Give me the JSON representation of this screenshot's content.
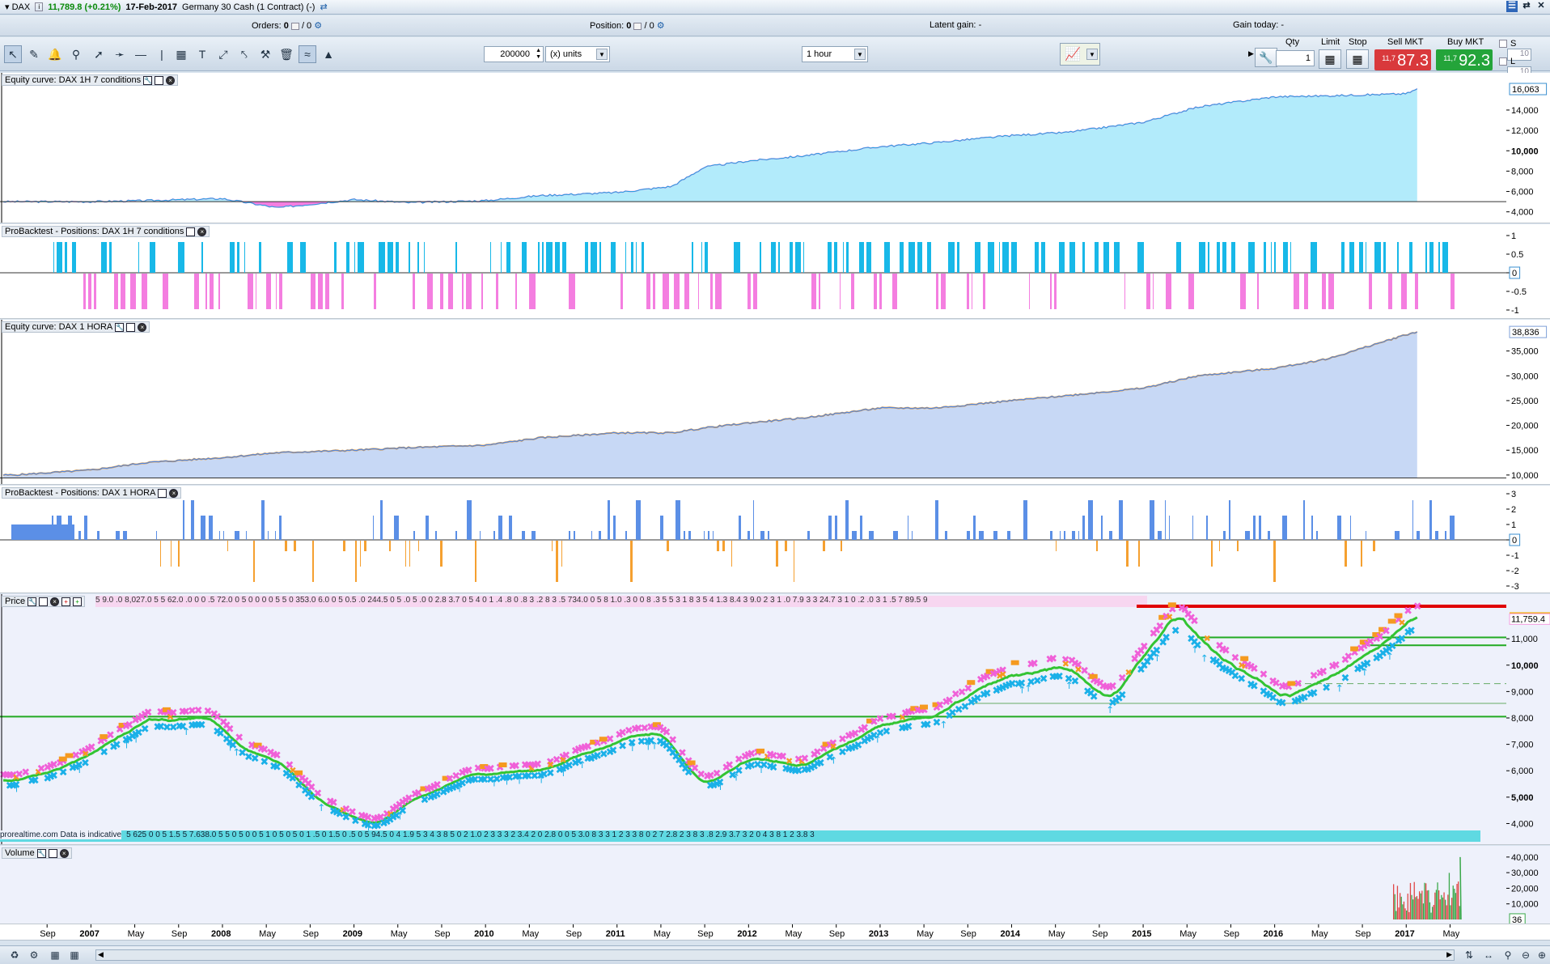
{
  "titlebar": {
    "instrument": "DAX",
    "price_change": "11,789.8 (+0.21%)",
    "date": "17-Feb-2017",
    "description": "Germany 30 Cash (1 Contract) (-)"
  },
  "infobar": {
    "orders_label": "Orders:",
    "orders_value": "0",
    "orders_sep": "/ 0",
    "position_label": "Position:",
    "position_value": "0",
    "position_sep": "/ 0",
    "latent_gain_label": "Latent gain:",
    "latent_gain_value": "-",
    "gain_today_label": "Gain today:",
    "gain_today_value": "-"
  },
  "toolbar": {
    "quantity_value": "200000",
    "units_select": "(x) units",
    "timeframe_select": "1 hour"
  },
  "order_panel": {
    "qty_label": "Qty",
    "qty_value": "1",
    "limit_label": "Limit",
    "stop_label": "Stop",
    "sell_label": "Sell MKT",
    "sell_prefix": "11,7",
    "sell_price": "87.3",
    "buy_label": "Buy MKT",
    "buy_prefix": "11,7",
    "buy_price": "92.3",
    "s_label": "S",
    "s_value": "10",
    "l_label": "L",
    "l_value": "10"
  },
  "colors": {
    "equity1_fill": "#b2ebfb",
    "equity1_line": "#1aa6e0",
    "drawdown": "#f47ee0",
    "long_bar": "#18b8e8",
    "short_bar": "#f47ee0",
    "equity2_fill": "#c7d8f5",
    "equity2_line": "#4f86e3",
    "equity2_bull": "#f5a030",
    "long_bar2": "#5b8fe6",
    "short_bar2": "#f5a030",
    "moving_avg": "#33c433",
    "support_line": "#22aa22",
    "resistance_line": "#e00000"
  },
  "panels": {
    "equity1_title": "Equity curve: DAX 1H 7 conditions",
    "positions1_title": "ProBacktest - Positions: DAX 1H 7 conditions",
    "equity2_title": "Equity curve: DAX 1 HORA",
    "positions2_title": "ProBacktest - Positions: DAX 1 HORA",
    "price_title": "Price",
    "volume_title": "Volume"
  },
  "axes": {
    "equity1": {
      "current": "16,063",
      "ticks": [
        "14,000",
        "12,000",
        "10,000",
        "8,000",
        "6,000",
        "4,000"
      ],
      "bold": [
        "10,000"
      ]
    },
    "positions1": {
      "ticks": [
        "1",
        "0.5",
        "0",
        "-0.5",
        "-1"
      ],
      "current": "0"
    },
    "equity2": {
      "current": "38,836",
      "ticks": [
        "35,000",
        "30,000",
        "25,000",
        "20,000",
        "15,000",
        "10,000"
      ]
    },
    "positions2": {
      "ticks": [
        "3",
        "2",
        "1",
        "0",
        "-1",
        "-2",
        "-3"
      ],
      "current": "0"
    },
    "price": {
      "current": "11,789.8",
      "second": "11,759.4",
      "ticks": [
        "11,000",
        "10,000",
        "9,000",
        "8,000",
        "7,000",
        "6,000",
        "5,000",
        "4,000"
      ],
      "bold": [
        "10,000",
        "5,000"
      ]
    },
    "volume": {
      "ticks": [
        "40,000",
        "30,000",
        "20,000",
        "10,000"
      ],
      "current": "36"
    }
  },
  "time_axis": [
    "Sep",
    "2007",
    "May",
    "Sep",
    "2008",
    "May",
    "Sep",
    "2009",
    "May",
    "Sep",
    "2010",
    "May",
    "Sep",
    "2011",
    "May",
    "Sep",
    "2012",
    "May",
    "Sep",
    "2013",
    "May",
    "Sep",
    "2014",
    "May",
    "Sep",
    "2015",
    "May",
    "Sep",
    "2016",
    "May",
    "Sep",
    "2017",
    "May"
  ],
  "price_strip_top": "5 9.0 .0 8,027.0 5 5 62.0 .0 0 0 .5 72.0 0 5 0 0 0 0 5 5 0 353.0 6.0 0 5 0.5 .0 244.5 0 5 .0 5 .0 0 2.8 3.7 0 5 4 0 1 .4 .8 0 .8 3 .2 8 3 .5 734.0 0 5 8 1.0 .3 0 0 8 .3 5 5 3 1 8 3 5 4 1.3 8.4 3 9.0 2 3 1 .0 7.9 3 3 24.7 3 1 0 .2 .0 3 1 .5 7 89.5 9",
  "price_strip_bottom": "5 625 0 0 5 1.5 5 7.638.0 5 5 0 5 0 0 5 1 0 5 0 5 0 1 .5 0 1.5 0 .5 0 5 94.5 0 4 1.9 5 3 4 3 8 5 0 2 1.0 2 3 3 3 2 3.4 2 0 2.8 0 0 5 3.0 8 3 3 1 2 3 3 8 0 2 7 2.8 2 3 8 3 .8 2.9 3.7 3 2 0 4 3 8 1 2 3.8 3",
  "price_strip_note": "prorealtime.com Data is indicative",
  "chart_data": [
    {
      "type": "area",
      "title": "Equity curve: DAX 1H 7 conditions",
      "x": [
        "2006-06",
        "2007-01",
        "2007-06",
        "2008-01",
        "2008-06",
        "2009-01",
        "2009-06",
        "2010-01",
        "2010-06",
        "2011-01",
        "2011-06",
        "2011-09",
        "2012-01",
        "2012-06",
        "2013-01",
        "2013-06",
        "2014-01",
        "2014-06",
        "2015-01",
        "2015-06",
        "2016-01",
        "2016-06",
        "2017-01",
        "2017-02"
      ],
      "values": [
        5000,
        5000,
        5100,
        5300,
        4400,
        5200,
        4900,
        5100,
        5600,
        5900,
        6500,
        8400,
        9000,
        9500,
        10400,
        10800,
        11500,
        11800,
        12800,
        14300,
        15300,
        15400,
        15600,
        16063
      ],
      "ylim": [
        3500,
        16700
      ]
    },
    {
      "type": "bar",
      "title": "ProBacktest - Positions: DAX 1H 7 conditions",
      "ylim": [
        -1,
        1
      ]
    },
    {
      "type": "area",
      "title": "Equity curve: DAX 1 HORA",
      "x": [
        "2006-06",
        "2007-01",
        "2007-06",
        "2008-01",
        "2008-06",
        "2009-01",
        "2009-06",
        "2010-01",
        "2010-06",
        "2011-01",
        "2011-06",
        "2011-09",
        "2012-01",
        "2012-06",
        "2013-01",
        "2013-06",
        "2014-01",
        "2014-06",
        "2015-01",
        "2015-06",
        "2016-01",
        "2016-06",
        "2017-01",
        "2017-02"
      ],
      "values": [
        10000,
        11000,
        12500,
        13500,
        14500,
        15000,
        15500,
        16000,
        17500,
        18500,
        18500,
        19500,
        20500,
        21500,
        23500,
        23500,
        25000,
        26000,
        27500,
        30000,
        31500,
        33500,
        38300,
        38836
      ],
      "ylim": [
        9000,
        40000
      ]
    },
    {
      "type": "bar",
      "title": "ProBacktest - Positions: DAX 1 HORA",
      "ylim": [
        -3,
        3
      ]
    },
    {
      "type": "line",
      "title": "Price",
      "x": [
        "2006-06",
        "2006-09",
        "2007-01",
        "2007-06",
        "2007-12",
        "2008-03",
        "2008-06",
        "2008-10",
        "2009-03",
        "2009-06",
        "2009-12",
        "2010-06",
        "2011-01",
        "2011-05",
        "2011-09",
        "2012-01",
        "2012-06",
        "2013-01",
        "2013-06",
        "2013-12",
        "2014-06",
        "2014-10",
        "2015-04",
        "2015-08",
        "2016-02",
        "2016-06",
        "2016-10",
        "2017-01",
        "2017-02"
      ],
      "values": [
        5600,
        5900,
        6600,
        7900,
        8000,
        6800,
        6500,
        4800,
        3900,
        4800,
        5900,
        6000,
        7100,
        7500,
        5400,
        6500,
        6200,
        7700,
        8100,
        9500,
        9900,
        8700,
        11900,
        10300,
        8800,
        9500,
        10500,
        11500,
        11789.8
      ],
      "ylim": [
        3800,
        12200
      ]
    },
    {
      "type": "bar",
      "title": "Volume",
      "ylim": [
        0,
        42000
      ]
    }
  ]
}
